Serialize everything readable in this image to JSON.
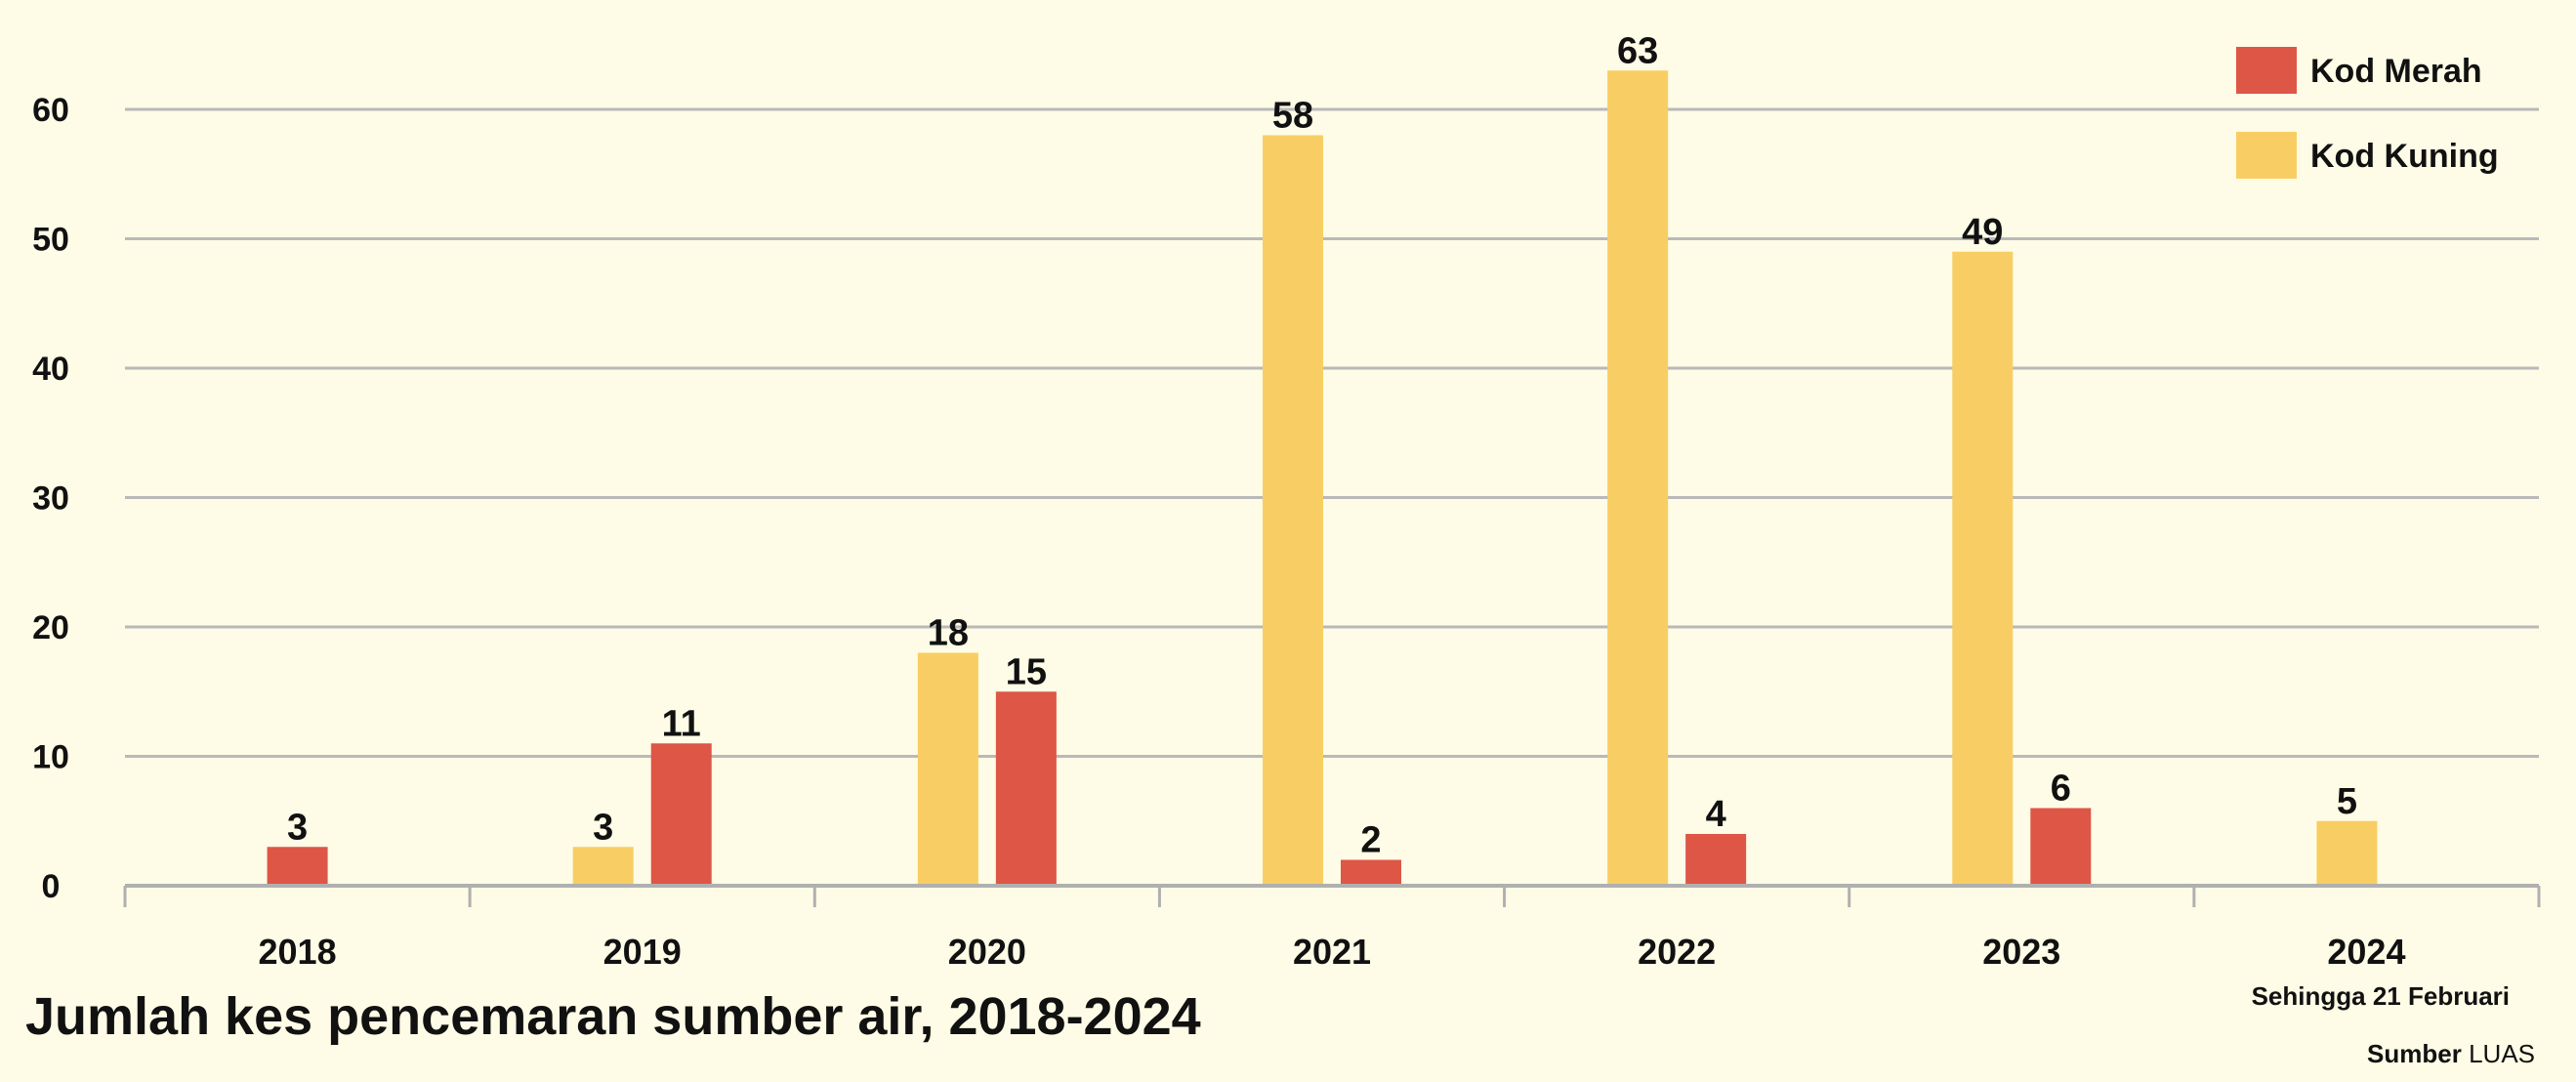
{
  "chart_data": {
    "type": "bar",
    "title": "Jumlah kes pencemaran sumber air, 2018-2024",
    "categories": [
      "2018",
      "2019",
      "2020",
      "2021",
      "2022",
      "2023",
      "2024"
    ],
    "series": [
      {
        "name": "Kod Kuning",
        "color": "#f8ce64",
        "values": [
          null,
          3,
          18,
          58,
          63,
          49,
          5
        ]
      },
      {
        "name": "Kod Merah",
        "color": "#de5646",
        "values": [
          3,
          11,
          15,
          2,
          4,
          6,
          null
        ]
      }
    ],
    "ylim": [
      0,
      65
    ],
    "yticks": [
      0,
      10,
      20,
      30,
      40,
      50,
      60
    ],
    "grid": true,
    "legend_position": "top-right",
    "legend_order": [
      "Kod Merah",
      "Kod Kuning"
    ],
    "note": "Sehingga 21 Februari",
    "source_label": "Sumber",
    "source_value": "LUAS"
  }
}
